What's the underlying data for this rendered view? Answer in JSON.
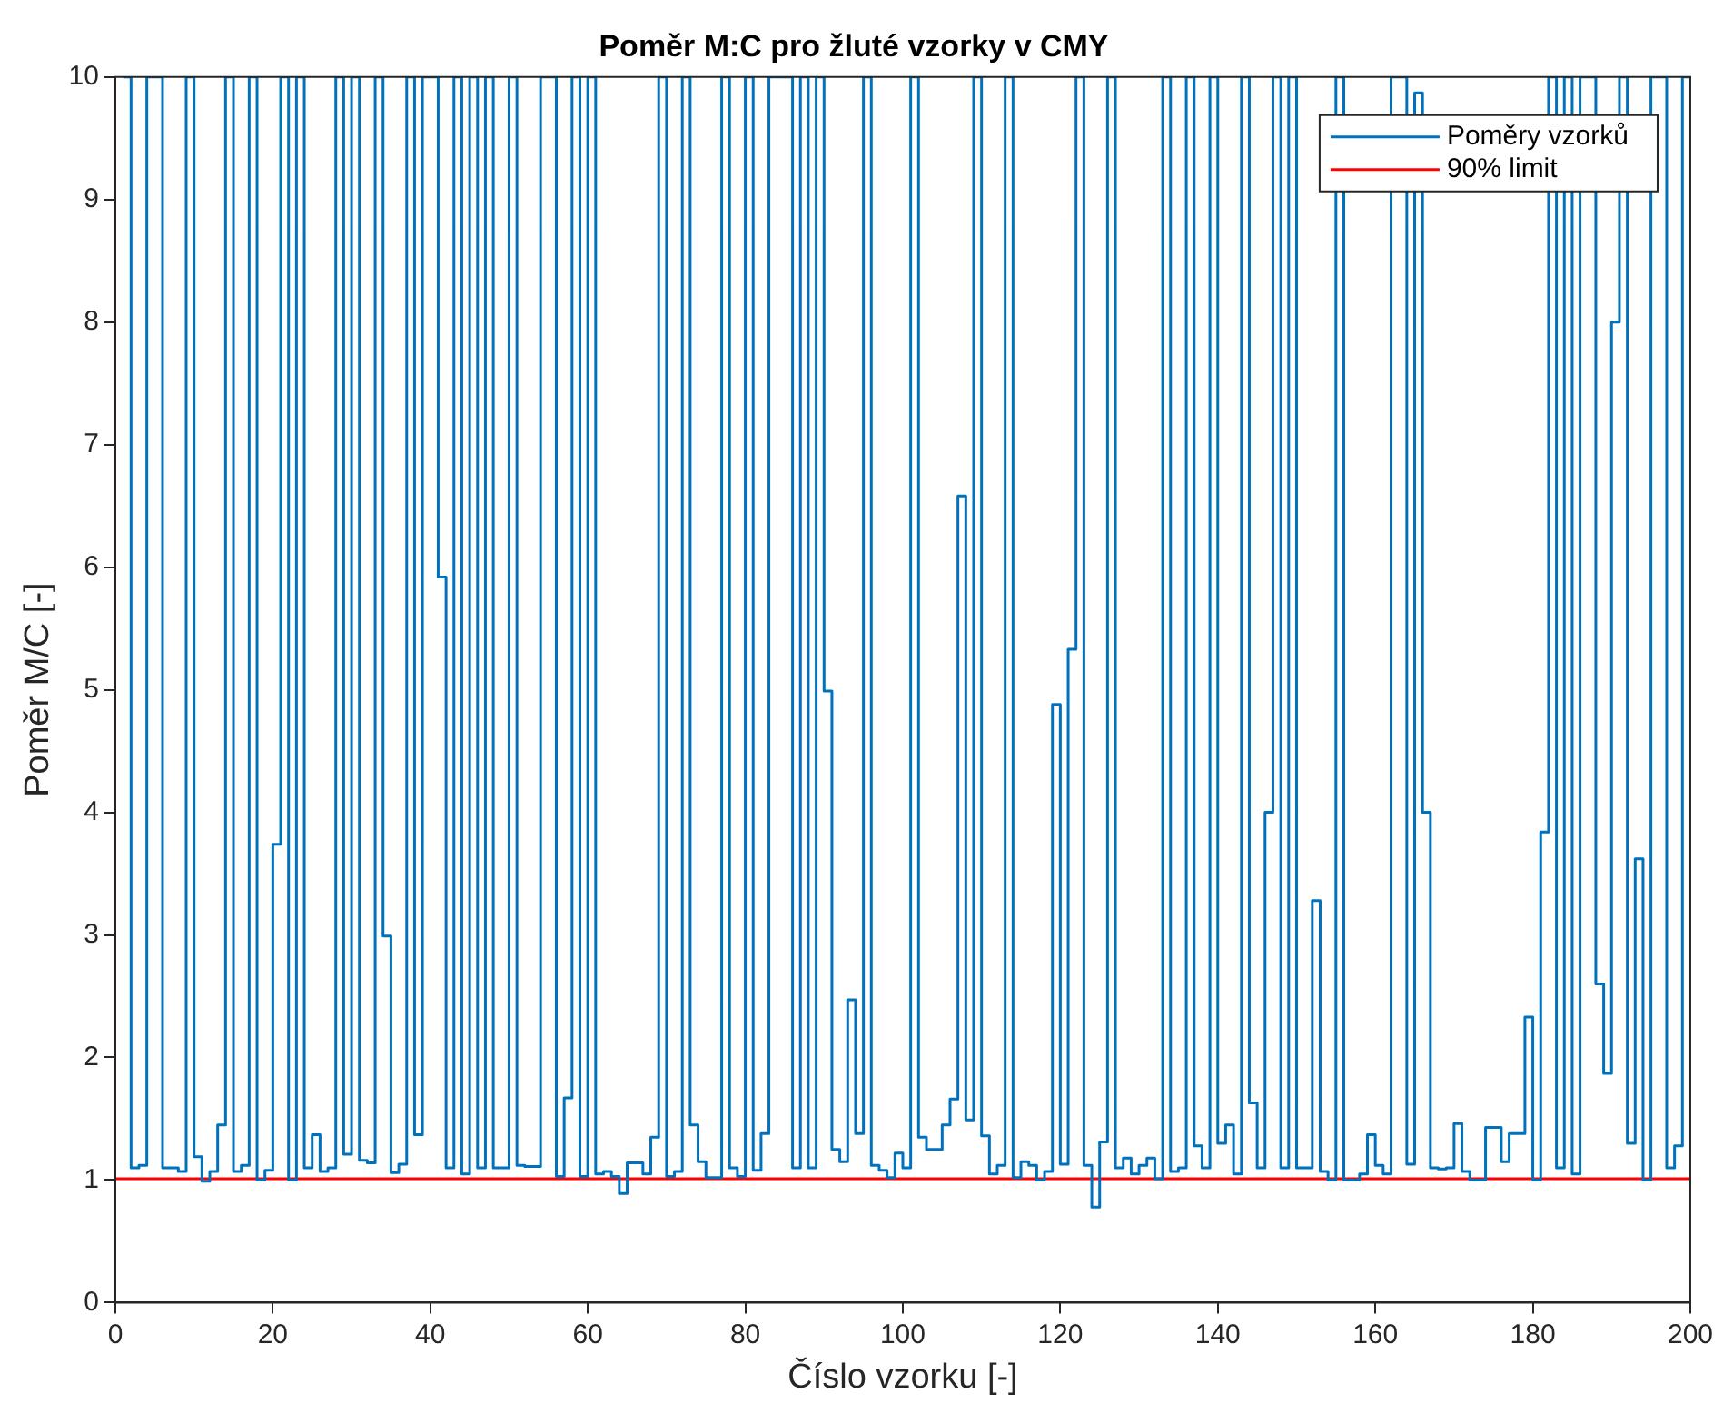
{
  "chart_data": {
    "type": "step",
    "title": "Poměr M:C pro žluté vzorky v CMY",
    "xlabel": "Číslo vzorku [-]",
    "ylabel": "Poměr M/C [-]",
    "x": [
      1,
      2,
      3,
      4,
      5,
      6,
      7,
      8,
      9,
      10,
      11,
      12,
      13,
      14,
      15,
      16,
      17,
      18,
      19,
      20,
      21,
      22,
      23,
      24,
      25,
      26,
      27,
      28,
      29,
      30,
      31,
      32,
      33,
      34,
      35,
      36,
      37,
      38,
      39,
      40,
      41,
      42,
      43,
      44,
      45,
      46,
      47,
      48,
      49,
      50,
      51,
      52,
      53,
      54,
      55,
      56,
      57,
      58,
      59,
      60,
      61,
      62,
      63,
      64,
      65,
      66,
      67,
      68,
      69,
      70,
      71,
      72,
      73,
      74,
      75,
      76,
      77,
      78,
      79,
      80,
      81,
      82,
      83,
      84,
      85,
      86,
      87,
      88,
      89,
      90,
      91,
      92,
      93,
      94,
      95,
      96,
      97,
      98,
      99,
      100,
      101,
      102,
      103,
      104,
      105,
      106,
      107,
      108,
      109,
      110,
      111,
      112,
      113,
      114,
      115,
      116,
      117,
      118,
      119,
      120,
      121,
      122,
      123,
      124,
      125,
      126,
      127,
      128,
      129,
      130,
      131,
      132,
      133,
      134,
      135,
      136,
      137,
      138,
      139,
      140,
      141,
      142,
      143,
      144,
      145,
      146,
      147,
      148,
      149,
      150,
      151,
      152,
      153,
      154,
      155,
      156,
      157,
      158,
      159,
      160,
      161,
      162,
      163,
      164,
      165,
      166,
      167,
      168,
      169,
      170,
      171,
      172,
      173,
      174,
      175,
      176,
      177,
      178,
      179,
      180,
      181,
      182,
      183,
      184,
      185,
      186,
      187,
      188,
      189,
      190,
      191,
      192,
      193,
      194,
      195,
      196,
      197,
      198,
      199,
      200
    ],
    "series": [
      {
        "name": "Poměry vzorků",
        "color": "#0072bd",
        "values": [
          10,
          1.1,
          1.12,
          10,
          10,
          1.1,
          1.1,
          1.07,
          10,
          1.19,
          0.99,
          1.07,
          1.45,
          10,
          1.07,
          1.12,
          10,
          1.0,
          1.08,
          3.74,
          10,
          1.0,
          10,
          1.1,
          1.37,
          1.07,
          1.1,
          10,
          1.21,
          10,
          1.16,
          1.14,
          10,
          2.99,
          1.06,
          1.13,
          10,
          1.37,
          10,
          10,
          5.92,
          1.1,
          10,
          1.05,
          10,
          1.1,
          10,
          1.1,
          1.1,
          10,
          1.12,
          1.11,
          1.11,
          10,
          10,
          1.03,
          1.67,
          10,
          1.03,
          10,
          1.05,
          1.07,
          1.03,
          0.89,
          1.14,
          1.14,
          1.05,
          1.35,
          10,
          1.03,
          1.07,
          10,
          1.45,
          1.15,
          1.02,
          1.02,
          10,
          1.1,
          1.03,
          10,
          1.08,
          1.38,
          10,
          10,
          10,
          1.1,
          10,
          1.1,
          10,
          4.99,
          1.25,
          1.15,
          2.47,
          1.38,
          10,
          1.12,
          1.08,
          1.02,
          1.22,
          1.1,
          10,
          1.35,
          1.25,
          1.25,
          1.45,
          1.66,
          6.58,
          1.49,
          10,
          1.36,
          1.05,
          1.12,
          10,
          1.02,
          1.15,
          1.12,
          1.0,
          1.07,
          4.88,
          1.13,
          5.33,
          10,
          1.12,
          0.78,
          1.31,
          10,
          1.1,
          1.18,
          1.05,
          1.12,
          1.18,
          1.01,
          10,
          1.07,
          1.1,
          10,
          1.28,
          1.1,
          10,
          1.3,
          1.45,
          1.05,
          10,
          1.63,
          1.1,
          4.0,
          10,
          1.1,
          10,
          1.1,
          1.1,
          3.28,
          1.07,
          1.0,
          10,
          1.0,
          1.0,
          1.05,
          1.37,
          1.12,
          1.05,
          10,
          10,
          1.13,
          9.87,
          4.0,
          1.1,
          1.09,
          1.1,
          1.46,
          1.07,
          1.0,
          1.0,
          1.43,
          1.43,
          1.15,
          1.38,
          1.38,
          2.33,
          1.0,
          3.84,
          10,
          1.1,
          10,
          1.05,
          10,
          10,
          2.6,
          1.87,
          8.0,
          10,
          1.3,
          3.62,
          1.0,
          10,
          10,
          1.1,
          1.28,
          10,
          10
        ]
      }
    ],
    "ref_lines": [
      {
        "axis": "y",
        "value": 1.01,
        "label": "90% limit",
        "color": "#ff0000"
      }
    ],
    "xlim": [
      0,
      200
    ],
    "xticks": [
      0,
      20,
      40,
      60,
      80,
      100,
      120,
      140,
      160,
      180,
      200
    ],
    "ylim": [
      0,
      10
    ],
    "yticks": [
      0,
      1,
      2,
      3,
      4,
      5,
      6,
      7,
      8,
      9,
      10
    ],
    "grid": false,
    "legend": "top right"
  }
}
